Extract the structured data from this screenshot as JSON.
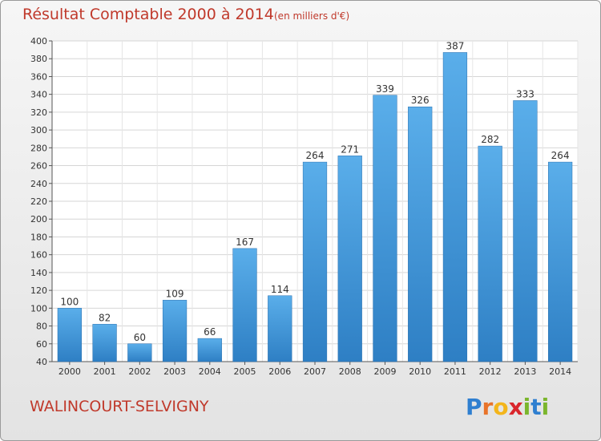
{
  "chart_data": {
    "type": "bar",
    "title": "Résultat Comptable 2000 à 2014",
    "subtitle": "(en milliers d'€)",
    "categories": [
      "2000",
      "2001",
      "2002",
      "2003",
      "2004",
      "2005",
      "2006",
      "2007",
      "2008",
      "2009",
      "2010",
      "2011",
      "2012",
      "2013",
      "2014"
    ],
    "values": [
      100,
      82,
      60,
      109,
      66,
      167,
      114,
      264,
      271,
      339,
      326,
      387,
      282,
      333,
      264
    ],
    "ylim": [
      40,
      400
    ],
    "yticks": [
      40,
      60,
      80,
      100,
      120,
      140,
      160,
      180,
      200,
      220,
      240,
      260,
      280,
      300,
      320,
      340,
      360,
      380,
      400
    ],
    "grid": true,
    "bar_color": "#4a9ee0"
  },
  "footer": {
    "location": "WALINCOURT-SELVIGNY",
    "logo": "Proxiti"
  }
}
